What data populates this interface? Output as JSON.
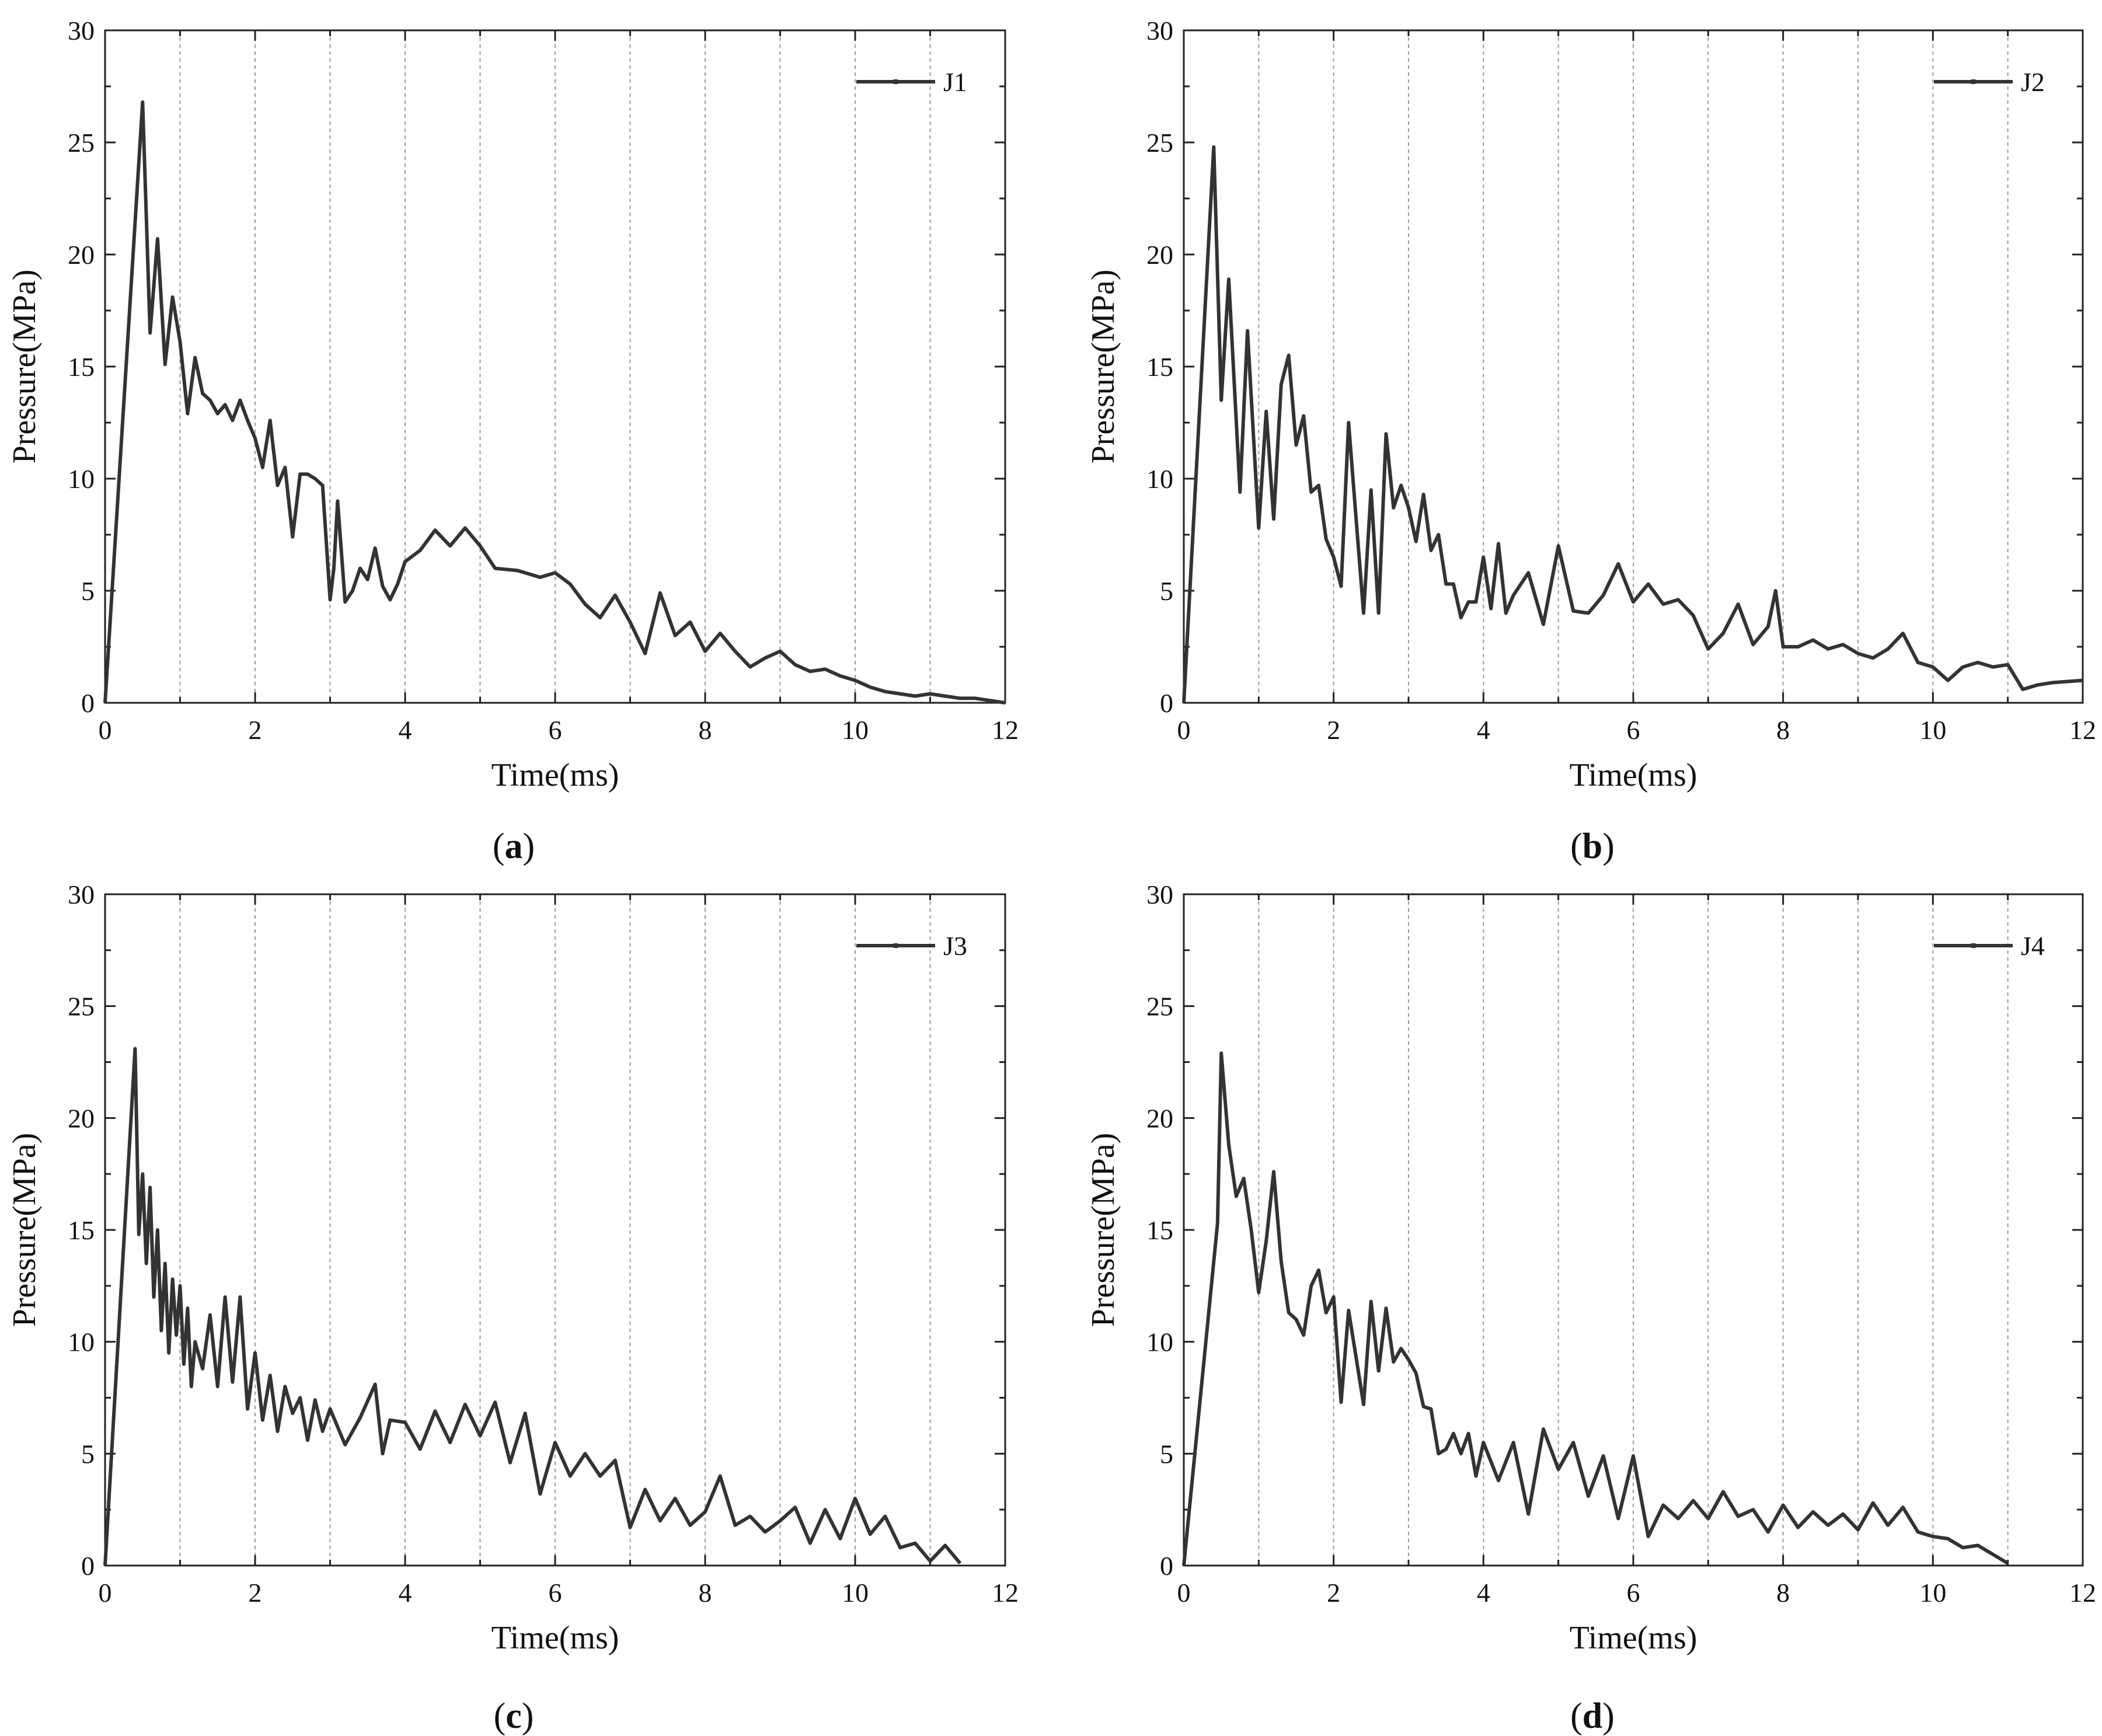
{
  "chart_data": [
    {
      "type": "line",
      "caption": "a",
      "xlabel": "Time(ms)",
      "ylabel": "Pressure(MPa)",
      "xlim": [
        0,
        12
      ],
      "ylim": [
        0,
        30
      ],
      "xticks": [
        0,
        2,
        4,
        6,
        8,
        10,
        12
      ],
      "yticks": [
        0,
        5,
        10,
        15,
        20,
        25,
        30
      ],
      "grid_vertical_every": 1,
      "legend_position": "top-right",
      "series": [
        {
          "name": "J1",
          "color": "#333333",
          "x": [
            0,
            0.5,
            0.6,
            0.7,
            0.8,
            0.9,
            1.0,
            1.1,
            1.2,
            1.3,
            1.4,
            1.5,
            1.6,
            1.7,
            1.8,
            1.9,
            2.0,
            2.1,
            2.2,
            2.3,
            2.4,
            2.5,
            2.6,
            2.7,
            2.8,
            2.9,
            3.0,
            3.05,
            3.1,
            3.2,
            3.3,
            3.4,
            3.5,
            3.6,
            3.7,
            3.8,
            3.9,
            4.0,
            4.2,
            4.4,
            4.6,
            4.8,
            5.0,
            5.2,
            5.5,
            5.8,
            6.0,
            6.2,
            6.4,
            6.6,
            6.8,
            7.0,
            7.2,
            7.4,
            7.6,
            7.8,
            8.0,
            8.2,
            8.4,
            8.6,
            8.8,
            9.0,
            9.2,
            9.4,
            9.6,
            9.8,
            10.0,
            10.2,
            10.4,
            10.6,
            10.8,
            11.0,
            11.2,
            11.4,
            11.6,
            12.0
          ],
          "values": [
            0,
            26.8,
            16.5,
            20.7,
            15.1,
            18.1,
            16.1,
            12.9,
            15.4,
            13.8,
            13.5,
            12.9,
            13.3,
            12.6,
            13.5,
            12.6,
            11.8,
            10.5,
            12.6,
            9.7,
            10.5,
            7.4,
            10.2,
            10.2,
            10.0,
            9.7,
            4.6,
            6.0,
            9.0,
            4.5,
            5.0,
            6.0,
            5.5,
            6.9,
            5.2,
            4.6,
            5.3,
            6.3,
            6.8,
            7.7,
            7.0,
            7.8,
            7.0,
            6.0,
            5.9,
            5.6,
            5.8,
            5.3,
            4.4,
            3.8,
            4.8,
            3.6,
            2.2,
            4.9,
            3.0,
            3.6,
            2.3,
            3.1,
            2.3,
            1.6,
            2.0,
            2.3,
            1.7,
            1.4,
            1.5,
            1.2,
            1.0,
            0.7,
            0.5,
            0.4,
            0.3,
            0.4,
            0.3,
            0.2,
            0.2,
            0.0
          ]
        }
      ]
    },
    {
      "type": "line",
      "caption": "b",
      "xlabel": "Time(ms)",
      "ylabel": "Pressure(MPa)",
      "xlim": [
        0,
        12
      ],
      "ylim": [
        0,
        30
      ],
      "xticks": [
        0,
        2,
        4,
        6,
        8,
        10,
        12
      ],
      "yticks": [
        0,
        5,
        10,
        15,
        20,
        25,
        30
      ],
      "grid_vertical_every": 1,
      "legend_position": "top-right",
      "series": [
        {
          "name": "J2",
          "color": "#333333",
          "x": [
            0,
            0.4,
            0.5,
            0.6,
            0.75,
            0.85,
            1.0,
            1.1,
            1.2,
            1.3,
            1.4,
            1.5,
            1.6,
            1.7,
            1.8,
            1.9,
            2.0,
            2.1,
            2.2,
            2.3,
            2.4,
            2.5,
            2.6,
            2.7,
            2.8,
            2.9,
            3.0,
            3.1,
            3.2,
            3.3,
            3.4,
            3.5,
            3.6,
            3.7,
            3.8,
            3.9,
            4.0,
            4.1,
            4.2,
            4.3,
            4.4,
            4.6,
            4.8,
            5.0,
            5.2,
            5.4,
            5.6,
            5.8,
            6.0,
            6.2,
            6.4,
            6.6,
            6.8,
            7.0,
            7.2,
            7.4,
            7.6,
            7.8,
            7.9,
            8.0,
            8.2,
            8.4,
            8.6,
            8.8,
            9.0,
            9.2,
            9.4,
            9.6,
            9.8,
            10.0,
            10.2,
            10.4,
            10.6,
            10.8,
            11.0,
            11.2,
            11.4,
            11.6,
            12.0
          ],
          "values": [
            0,
            24.8,
            13.5,
            18.9,
            9.4,
            16.6,
            7.8,
            13.0,
            8.2,
            14.2,
            15.5,
            11.5,
            12.8,
            9.4,
            9.7,
            7.3,
            6.5,
            5.2,
            12.5,
            8.2,
            4.0,
            9.5,
            4.0,
            12.0,
            8.7,
            9.7,
            8.7,
            7.2,
            9.3,
            6.8,
            7.5,
            5.3,
            5.3,
            3.8,
            4.5,
            4.5,
            6.5,
            4.2,
            7.1,
            4.0,
            4.8,
            5.8,
            3.5,
            7.0,
            4.1,
            4.0,
            4.8,
            6.2,
            4.5,
            5.3,
            4.4,
            4.6,
            3.9,
            2.4,
            3.1,
            4.4,
            2.6,
            3.4,
            5.0,
            2.5,
            2.5,
            2.8,
            2.4,
            2.6,
            2.2,
            2.0,
            2.4,
            3.1,
            1.8,
            1.6,
            1.0,
            1.6,
            1.8,
            1.6,
            1.7,
            0.6,
            0.8,
            0.9,
            1.0
          ]
        }
      ]
    },
    {
      "type": "line",
      "caption": "c",
      "xlabel": "Time(ms)",
      "ylabel": "Pressure(MPa)",
      "xlim": [
        0,
        12
      ],
      "ylim": [
        0,
        30
      ],
      "xticks": [
        0,
        2,
        4,
        6,
        8,
        10,
        12
      ],
      "yticks": [
        0,
        5,
        10,
        15,
        20,
        25,
        30
      ],
      "grid_vertical_every": 1,
      "legend_position": "top-right",
      "series": [
        {
          "name": "J3",
          "color": "#333333",
          "x": [
            0,
            0.4,
            0.45,
            0.5,
            0.55,
            0.6,
            0.65,
            0.7,
            0.75,
            0.8,
            0.85,
            0.9,
            0.95,
            1.0,
            1.05,
            1.1,
            1.15,
            1.2,
            1.3,
            1.4,
            1.5,
            1.6,
            1.7,
            1.8,
            1.9,
            2.0,
            2.1,
            2.2,
            2.3,
            2.4,
            2.5,
            2.6,
            2.7,
            2.8,
            2.9,
            3.0,
            3.2,
            3.4,
            3.6,
            3.7,
            3.8,
            4.0,
            4.2,
            4.4,
            4.6,
            4.8,
            5.0,
            5.2,
            5.4,
            5.6,
            5.8,
            6.0,
            6.2,
            6.4,
            6.6,
            6.8,
            7.0,
            7.2,
            7.4,
            7.6,
            7.8,
            8.0,
            8.2,
            8.4,
            8.6,
            8.8,
            9.0,
            9.2,
            9.4,
            9.6,
            9.8,
            10.0,
            10.2,
            10.4,
            10.6,
            10.8,
            11.0,
            11.2,
            11.4
          ],
          "values": [
            0,
            23.1,
            14.8,
            17.5,
            13.5,
            16.9,
            12.0,
            15.0,
            10.5,
            13.5,
            9.5,
            12.8,
            10.3,
            12.5,
            9.0,
            11.5,
            8.0,
            10.0,
            8.8,
            11.2,
            8.0,
            12.0,
            8.2,
            12.0,
            7.0,
            9.5,
            6.5,
            8.5,
            6.0,
            8.0,
            6.8,
            7.5,
            5.6,
            7.4,
            6.0,
            7.0,
            5.4,
            6.6,
            8.1,
            5.0,
            6.5,
            6.4,
            5.2,
            6.9,
            5.5,
            7.2,
            5.8,
            7.3,
            4.6,
            6.8,
            3.2,
            5.5,
            4.0,
            5.0,
            4.0,
            4.7,
            1.7,
            3.4,
            2.0,
            3.0,
            1.8,
            2.4,
            4.0,
            1.8,
            2.2,
            1.5,
            2.0,
            2.6,
            1.0,
            2.5,
            1.2,
            3.0,
            1.4,
            2.2,
            0.8,
            1.0,
            0.2,
            0.9,
            0.1
          ]
        }
      ]
    },
    {
      "type": "line",
      "caption": "d",
      "xlabel": "Time(ms)",
      "ylabel": "Pressure(MPa)",
      "xlim": [
        0,
        12
      ],
      "ylim": [
        0,
        30
      ],
      "xticks": [
        0,
        2,
        4,
        6,
        8,
        10,
        12
      ],
      "yticks": [
        0,
        5,
        10,
        15,
        20,
        25,
        30
      ],
      "grid_vertical_every": 1,
      "legend_position": "top-right",
      "series": [
        {
          "name": "J4",
          "color": "#333333",
          "x": [
            0,
            0.45,
            0.5,
            0.6,
            0.7,
            0.8,
            0.9,
            1.0,
            1.1,
            1.2,
            1.3,
            1.4,
            1.5,
            1.6,
            1.7,
            1.8,
            1.9,
            2.0,
            2.1,
            2.2,
            2.3,
            2.4,
            2.5,
            2.6,
            2.7,
            2.8,
            2.9,
            3.0,
            3.1,
            3.2,
            3.3,
            3.4,
            3.5,
            3.6,
            3.7,
            3.8,
            3.9,
            4.0,
            4.2,
            4.4,
            4.6,
            4.8,
            5.0,
            5.2,
            5.4,
            5.6,
            5.8,
            6.0,
            6.2,
            6.4,
            6.6,
            6.8,
            7.0,
            7.2,
            7.4,
            7.6,
            7.8,
            8.0,
            8.2,
            8.4,
            8.6,
            8.8,
            9.0,
            9.2,
            9.4,
            9.6,
            9.8,
            10.0,
            10.2,
            10.4,
            10.6,
            10.8,
            11.0
          ],
          "values": [
            0,
            15.3,
            22.9,
            18.8,
            16.5,
            17.3,
            15.0,
            12.2,
            14.5,
            17.6,
            13.6,
            11.3,
            11.0,
            10.3,
            12.5,
            13.2,
            11.3,
            12.0,
            7.3,
            11.4,
            9.3,
            7.2,
            11.8,
            8.7,
            11.5,
            9.1,
            9.7,
            9.2,
            8.6,
            7.1,
            7.0,
            5.0,
            5.2,
            5.9,
            5.0,
            5.9,
            4.0,
            5.5,
            3.8,
            5.5,
            2.3,
            6.1,
            4.3,
            5.5,
            3.1,
            4.9,
            2.1,
            4.9,
            1.3,
            2.7,
            2.1,
            2.9,
            2.1,
            3.3,
            2.2,
            2.5,
            1.5,
            2.7,
            1.7,
            2.4,
            1.8,
            2.3,
            1.6,
            2.8,
            1.8,
            2.6,
            1.5,
            1.3,
            1.2,
            0.8,
            0.9,
            0.5,
            0.1
          ]
        }
      ]
    }
  ]
}
